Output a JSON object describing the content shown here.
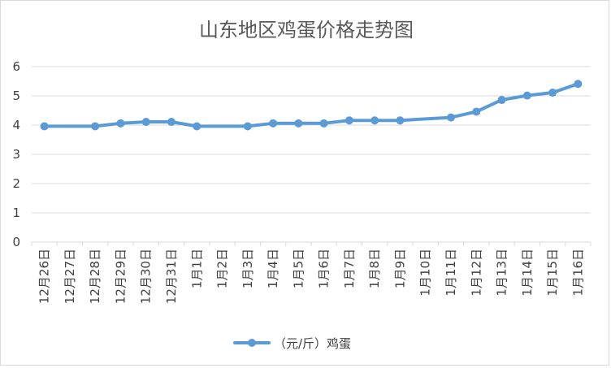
{
  "chart_data": {
    "type": "line",
    "title": "山东地区鸡蛋价格走势图",
    "xlabel": "",
    "ylabel": "",
    "ylim": [
      0,
      6
    ],
    "yticks": [
      0,
      1,
      2,
      3,
      4,
      5,
      6
    ],
    "grid": true,
    "legend_position": "bottom",
    "categories": [
      "12月26日",
      "12月27日",
      "12月28日",
      "12月29日",
      "12月30日",
      "12月31日",
      "1月1日",
      "1月2日",
      "1月3日",
      "1月4日",
      "1月5日",
      "1月6日",
      "1月7日",
      "1月8日",
      "1月9日",
      "1月10日",
      "1月11日",
      "1月12日",
      "1月13日",
      "1月14日",
      "1月15日",
      "1月16日"
    ],
    "series": [
      {
        "name": "（元/斤）鸡蛋",
        "color": "#5b9bd5",
        "values": [
          3.96,
          null,
          3.96,
          4.06,
          4.11,
          4.11,
          3.96,
          null,
          3.96,
          4.06,
          4.06,
          4.06,
          4.16,
          4.16,
          4.16,
          null,
          4.26,
          4.46,
          4.86,
          5.01,
          5.11,
          5.41
        ]
      }
    ]
  }
}
